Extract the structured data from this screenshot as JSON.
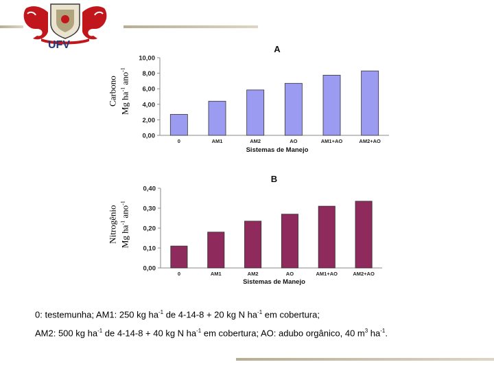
{
  "logo": {
    "text": "UFV"
  },
  "chart_data": [
    {
      "type": "bar",
      "title": "A",
      "ylabel_lines": [
        "Carbono",
        "Mg ha-1 ano-1"
      ],
      "xlabel": "Sistemas de Manejo",
      "categories": [
        "0",
        "AM1",
        "AM2",
        "AO",
        "AM1+AO",
        "AM2+AO"
      ],
      "values": [
        2.7,
        4.4,
        5.85,
        6.7,
        7.75,
        8.3
      ],
      "ylim": [
        0,
        10
      ],
      "yticks": [
        "0,00",
        "2,00",
        "4,00",
        "6,00",
        "8,00",
        "10,00"
      ],
      "color": "#9b9bf2",
      "grid": false
    },
    {
      "type": "bar",
      "title": "B",
      "ylabel_lines": [
        "Nitrogênio",
        "Mg ha-1 ano-1"
      ],
      "xlabel": "Sistemas de Manejo",
      "categories": [
        "0",
        "AM1",
        "AM2",
        "AO",
        "AM1+AO",
        "AM2+AO"
      ],
      "values": [
        0.11,
        0.18,
        0.235,
        0.27,
        0.31,
        0.335
      ],
      "ylim": [
        0,
        0.4
      ],
      "yticks": [
        "0,00",
        "0,10",
        "0,20",
        "0,30",
        "0,40"
      ],
      "color": "#8e2a5c",
      "grid": false
    }
  ],
  "caption": {
    "line1": "0: testemunha; AM1: 250 kg ha-1 de 4-14-8 + 20 kg N ha-1 em cobertura;",
    "line2": "AM2: 500 kg ha-1 de 4-14-8 + 40 kg N ha-1 em cobertura; AO:  adubo orgânico, 40 m3 ha-1."
  }
}
